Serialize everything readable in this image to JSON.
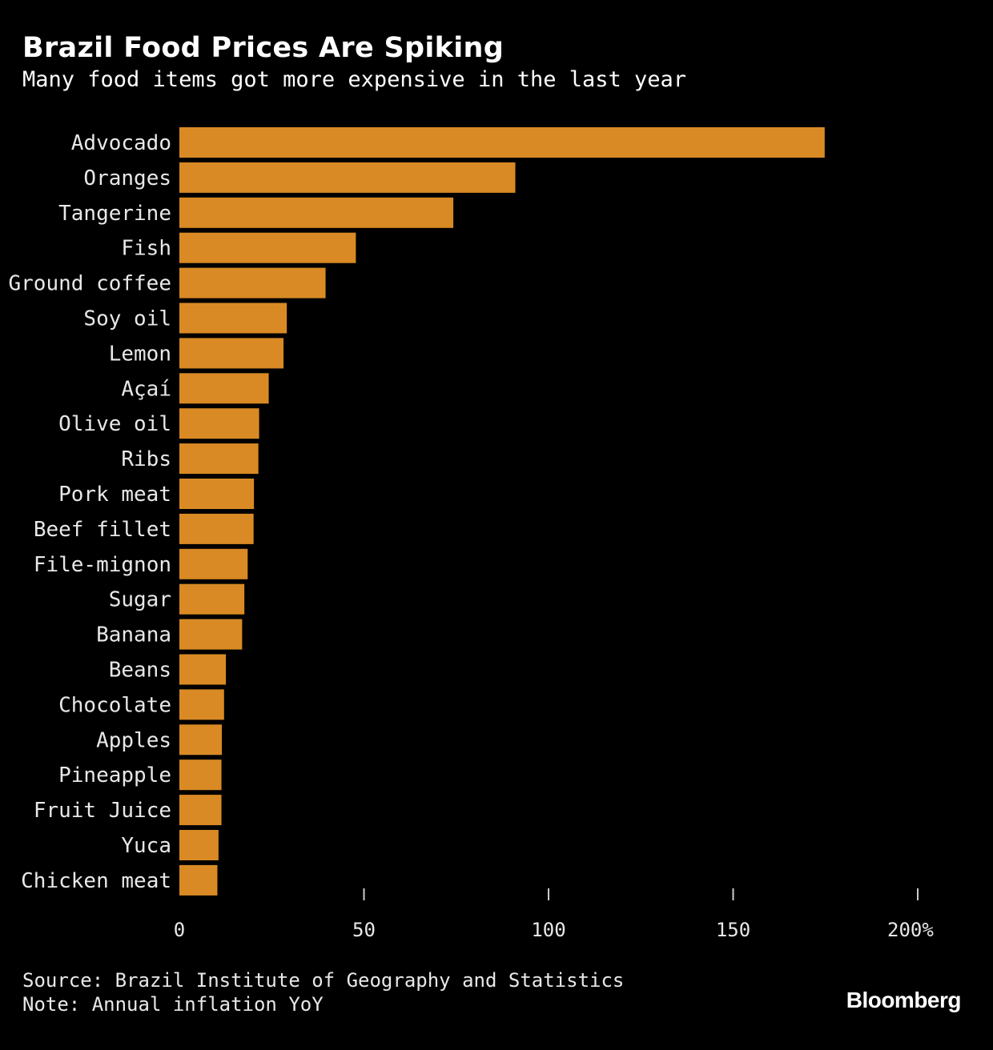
{
  "header": {
    "title": "Brazil Food Prices Are Spiking",
    "subtitle": "Many food items got more expensive in the last year"
  },
  "footer": {
    "source": "Source: Brazil Institute of Geography and Statistics",
    "note": "Note: Annual inflation YoY",
    "brand": "Bloomberg"
  },
  "colors": {
    "bar": "#d98a24",
    "background": "#000000",
    "text": "#ffffff",
    "tick": "#cccccc"
  },
  "chart_data": {
    "type": "bar",
    "orientation": "horizontal",
    "title": "Brazil Food Prices Are Spiking",
    "subtitle": "Many food items got more expensive in the last year",
    "xlabel": "",
    "ylabel": "",
    "xlim": [
      0,
      200
    ],
    "ticks": [
      0,
      50,
      100,
      150,
      200
    ],
    "tick_labels": [
      "0",
      "50",
      "100",
      "150",
      "200%"
    ],
    "grid": false,
    "categories": [
      "Advocado",
      "Oranges",
      "Tangerine",
      "Fish",
      "Ground coffee",
      "Soy oil",
      "Lemon",
      "Açaí",
      "Olive oil",
      "Ribs",
      "Pork meat",
      "Beef fillet",
      "File-mignon",
      "Sugar",
      "Banana",
      "Beans",
      "Chocolate",
      "Apples",
      "Pineapple",
      "Fruit Juice",
      "Yuca",
      "Chicken meat"
    ],
    "series": [
      {
        "name": "Annual inflation YoY (%)",
        "values": [
          174.8,
          91.0,
          74.2,
          47.8,
          39.6,
          29.1,
          28.2,
          24.2,
          21.6,
          21.4,
          20.2,
          20.1,
          18.5,
          17.6,
          17.0,
          12.6,
          12.1,
          11.5,
          11.4,
          11.4,
          10.6,
          10.3
        ]
      }
    ]
  }
}
